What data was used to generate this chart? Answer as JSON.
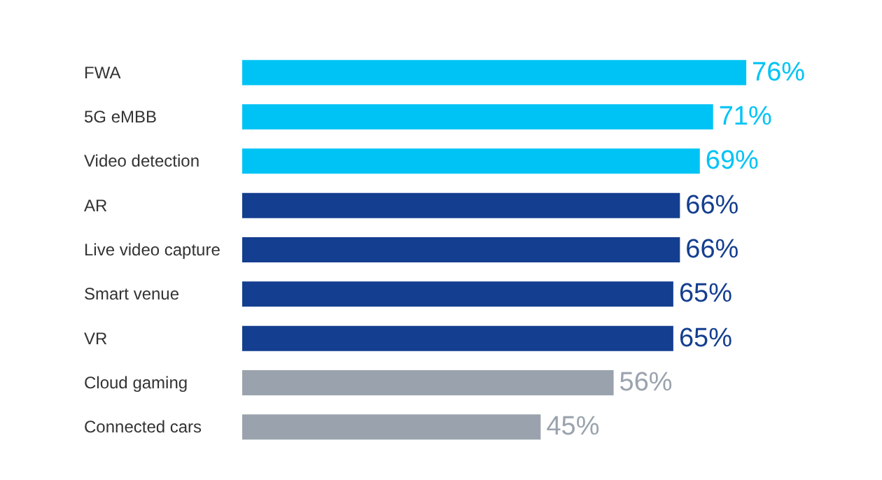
{
  "chart_data": {
    "type": "bar",
    "orientation": "horizontal",
    "categories": [
      "FWA",
      "5G eMBB",
      "Video detection",
      "AR",
      "Live video capture",
      "Smart venue",
      "VR",
      "Cloud gaming",
      "Connected cars"
    ],
    "values": [
      76,
      71,
      69,
      66,
      66,
      65,
      65,
      56,
      45
    ],
    "colors": [
      "#00c3f5",
      "#00c3f5",
      "#00c3f5",
      "#143e8f",
      "#143e8f",
      "#143e8f",
      "#143e8f",
      "#9aa3ad",
      "#9aa3ad"
    ],
    "value_labels": [
      "76%",
      "71%",
      "69%",
      "66%",
      "66%",
      "65%",
      "65%",
      "56%",
      "45%"
    ]
  }
}
